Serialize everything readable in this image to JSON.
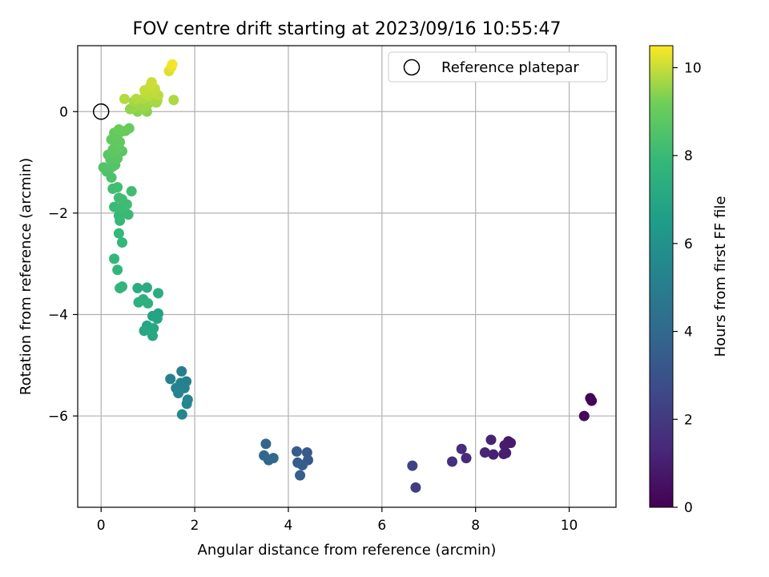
{
  "chart_data": {
    "type": "scatter",
    "title": "FOV centre drift starting at 2023/09/16 10:55:47",
    "xlabel": "Angular distance from reference (arcmin)",
    "ylabel": "Rotation from reference (arcmin)",
    "xlim": [
      -0.5,
      11
    ],
    "ylim": [
      -7.8,
      1.3
    ],
    "xticks": [
      0,
      2,
      4,
      6,
      8,
      10
    ],
    "yticks": [
      0,
      -2,
      -4,
      -6
    ],
    "grid": true,
    "legend": {
      "position": "top-right",
      "entries": [
        "Reference platepar"
      ]
    },
    "reference_point": {
      "x": 0,
      "y": 0
    },
    "colorbar": {
      "label": "Hours from first FF file",
      "range": [
        0,
        10.5
      ],
      "ticks": [
        0,
        2,
        4,
        6,
        8,
        10
      ],
      "colormap": "viridis"
    },
    "points": [
      {
        "x": 10.45,
        "y": -5.65,
        "h": 0.1
      },
      {
        "x": 10.48,
        "y": -5.7,
        "h": 0.15
      },
      {
        "x": 10.32,
        "y": -6.0,
        "h": 0.3
      },
      {
        "x": 8.7,
        "y": -6.5,
        "h": 0.8
      },
      {
        "x": 8.75,
        "y": -6.53,
        "h": 0.85
      },
      {
        "x": 8.62,
        "y": -6.58,
        "h": 0.9
      },
      {
        "x": 8.65,
        "y": -6.73,
        "h": 0.95
      },
      {
        "x": 8.6,
        "y": -6.75,
        "h": 1.0
      },
      {
        "x": 8.38,
        "y": -6.76,
        "h": 1.1
      },
      {
        "x": 8.33,
        "y": -6.47,
        "h": 1.15
      },
      {
        "x": 8.2,
        "y": -6.72,
        "h": 1.25
      },
      {
        "x": 7.8,
        "y": -6.83,
        "h": 1.4
      },
      {
        "x": 7.7,
        "y": -6.65,
        "h": 1.5
      },
      {
        "x": 7.5,
        "y": -6.9,
        "h": 1.6
      },
      {
        "x": 6.72,
        "y": -7.41,
        "h": 2.1
      },
      {
        "x": 6.65,
        "y": -6.98,
        "h": 2.3
      },
      {
        "x": 4.4,
        "y": -6.72,
        "h": 3.3
      },
      {
        "x": 4.42,
        "y": -6.87,
        "h": 3.35
      },
      {
        "x": 4.18,
        "y": -6.7,
        "h": 3.4
      },
      {
        "x": 4.2,
        "y": -6.92,
        "h": 3.45
      },
      {
        "x": 4.3,
        "y": -6.97,
        "h": 3.5
      },
      {
        "x": 4.25,
        "y": -7.17,
        "h": 3.55
      },
      {
        "x": 3.52,
        "y": -6.55,
        "h": 3.8
      },
      {
        "x": 3.48,
        "y": -6.78,
        "h": 3.85
      },
      {
        "x": 3.58,
        "y": -6.87,
        "h": 3.9
      },
      {
        "x": 3.68,
        "y": -6.83,
        "h": 3.95
      },
      {
        "x": 1.72,
        "y": -5.12,
        "h": 5.0
      },
      {
        "x": 1.82,
        "y": -5.32,
        "h": 5.1
      },
      {
        "x": 1.48,
        "y": -5.27,
        "h": 5.15
      },
      {
        "x": 1.7,
        "y": -5.35,
        "h": 5.2
      },
      {
        "x": 1.6,
        "y": -5.45,
        "h": 5.25
      },
      {
        "x": 1.78,
        "y": -5.45,
        "h": 5.3
      },
      {
        "x": 1.65,
        "y": -5.55,
        "h": 5.35
      },
      {
        "x": 1.85,
        "y": -5.68,
        "h": 5.4
      },
      {
        "x": 1.83,
        "y": -5.76,
        "h": 5.45
      },
      {
        "x": 1.73,
        "y": -5.97,
        "h": 5.5
      },
      {
        "x": 1.22,
        "y": -3.98,
        "h": 6.8
      },
      {
        "x": 1.1,
        "y": -4.03,
        "h": 6.85
      },
      {
        "x": 1.2,
        "y": -4.08,
        "h": 6.9
      },
      {
        "x": 0.98,
        "y": -4.22,
        "h": 6.95
      },
      {
        "x": 1.12,
        "y": -4.27,
        "h": 7.0
      },
      {
        "x": 0.92,
        "y": -4.32,
        "h": 7.05
      },
      {
        "x": 1.1,
        "y": -4.42,
        "h": 7.1
      },
      {
        "x": 0.78,
        "y": -3.48,
        "h": 7.25
      },
      {
        "x": 0.98,
        "y": -3.47,
        "h": 7.3
      },
      {
        "x": 1.22,
        "y": -3.58,
        "h": 7.35
      },
      {
        "x": 0.9,
        "y": -3.7,
        "h": 7.4
      },
      {
        "x": 0.8,
        "y": -3.76,
        "h": 7.45
      },
      {
        "x": 1.0,
        "y": -3.78,
        "h": 7.5
      },
      {
        "x": 0.4,
        "y": -3.48,
        "h": 7.7
      },
      {
        "x": 0.45,
        "y": -3.45,
        "h": 7.72
      },
      {
        "x": 0.35,
        "y": -3.12,
        "h": 7.75
      },
      {
        "x": 0.28,
        "y": -2.9,
        "h": 7.8
      },
      {
        "x": 0.45,
        "y": -2.58,
        "h": 7.85
      },
      {
        "x": 0.38,
        "y": -2.4,
        "h": 7.88
      },
      {
        "x": 0.4,
        "y": -2.15,
        "h": 7.9
      },
      {
        "x": 0.38,
        "y": -2.05,
        "h": 7.95
      },
      {
        "x": 0.58,
        "y": -2.03,
        "h": 7.98
      },
      {
        "x": 0.28,
        "y": -1.88,
        "h": 8.0
      },
      {
        "x": 0.5,
        "y": -1.87,
        "h": 8.02
      },
      {
        "x": 0.42,
        "y": -1.9,
        "h": 8.05
      },
      {
        "x": 0.55,
        "y": -1.83,
        "h": 8.08
      },
      {
        "x": 0.38,
        "y": -1.7,
        "h": 8.1
      },
      {
        "x": 0.45,
        "y": -1.73,
        "h": 8.12
      },
      {
        "x": 0.65,
        "y": -1.57,
        "h": 8.15
      },
      {
        "x": 0.25,
        "y": -1.52,
        "h": 8.18
      },
      {
        "x": 0.35,
        "y": -1.49,
        "h": 8.2
      },
      {
        "x": 0.22,
        "y": -1.3,
        "h": 8.4
      },
      {
        "x": 0.12,
        "y": -1.18,
        "h": 8.45
      },
      {
        "x": 0.18,
        "y": -1.13,
        "h": 8.5
      },
      {
        "x": 0.05,
        "y": -1.1,
        "h": 8.55
      },
      {
        "x": 0.25,
        "y": -1.08,
        "h": 8.6
      },
      {
        "x": 0.3,
        "y": -1.05,
        "h": 8.62
      },
      {
        "x": 0.2,
        "y": -0.95,
        "h": 8.65
      },
      {
        "x": 0.35,
        "y": -0.92,
        "h": 8.7
      },
      {
        "x": 0.15,
        "y": -0.85,
        "h": 8.72
      },
      {
        "x": 0.45,
        "y": -0.78,
        "h": 8.75
      },
      {
        "x": 0.25,
        "y": -0.75,
        "h": 8.8
      },
      {
        "x": 0.38,
        "y": -0.72,
        "h": 8.82
      },
      {
        "x": 0.3,
        "y": -0.62,
        "h": 8.85
      },
      {
        "x": 0.4,
        "y": -0.6,
        "h": 8.88
      },
      {
        "x": 0.22,
        "y": -0.55,
        "h": 8.9
      },
      {
        "x": 0.33,
        "y": -0.48,
        "h": 8.92
      },
      {
        "x": 0.28,
        "y": -0.42,
        "h": 8.95
      },
      {
        "x": 0.42,
        "y": -0.4,
        "h": 8.98
      },
      {
        "x": 0.52,
        "y": -0.38,
        "h": 9.0
      },
      {
        "x": 0.6,
        "y": -0.33,
        "h": 9.02
      },
      {
        "x": 0.38,
        "y": -0.35,
        "h": 9.05
      },
      {
        "x": 0.78,
        "y": 0.0,
        "h": 9.4
      },
      {
        "x": 0.98,
        "y": 0.0,
        "h": 9.45
      },
      {
        "x": 0.88,
        "y": 0.05,
        "h": 9.5
      },
      {
        "x": 0.62,
        "y": 0.05,
        "h": 9.52
      },
      {
        "x": 0.72,
        "y": 0.08,
        "h": 9.55
      },
      {
        "x": 0.92,
        "y": 0.1,
        "h": 9.58
      },
      {
        "x": 0.82,
        "y": 0.12,
        "h": 9.6
      },
      {
        "x": 1.0,
        "y": 0.15,
        "h": 9.62
      },
      {
        "x": 1.18,
        "y": 0.18,
        "h": 9.65
      },
      {
        "x": 0.7,
        "y": 0.2,
        "h": 9.68
      },
      {
        "x": 1.12,
        "y": 0.22,
        "h": 9.7
      },
      {
        "x": 1.2,
        "y": 0.22,
        "h": 9.72
      },
      {
        "x": 1.55,
        "y": 0.23,
        "h": 9.75
      },
      {
        "x": 0.9,
        "y": 0.25,
        "h": 9.78
      },
      {
        "x": 0.75,
        "y": 0.25,
        "h": 9.8
      },
      {
        "x": 0.5,
        "y": 0.25,
        "h": 9.82
      },
      {
        "x": 1.02,
        "y": 0.3,
        "h": 9.85
      },
      {
        "x": 1.22,
        "y": 0.32,
        "h": 9.88
      },
      {
        "x": 0.95,
        "y": 0.35,
        "h": 9.9
      },
      {
        "x": 1.1,
        "y": 0.38,
        "h": 9.92
      },
      {
        "x": 0.93,
        "y": 0.42,
        "h": 9.95
      },
      {
        "x": 1.15,
        "y": 0.45,
        "h": 9.98
      },
      {
        "x": 1.05,
        "y": 0.5,
        "h": 10.0
      },
      {
        "x": 1.08,
        "y": 0.58,
        "h": 10.05
      },
      {
        "x": 1.45,
        "y": 0.8,
        "h": 10.2
      },
      {
        "x": 1.5,
        "y": 0.88,
        "h": 10.3
      },
      {
        "x": 1.52,
        "y": 0.93,
        "h": 10.4
      }
    ]
  }
}
